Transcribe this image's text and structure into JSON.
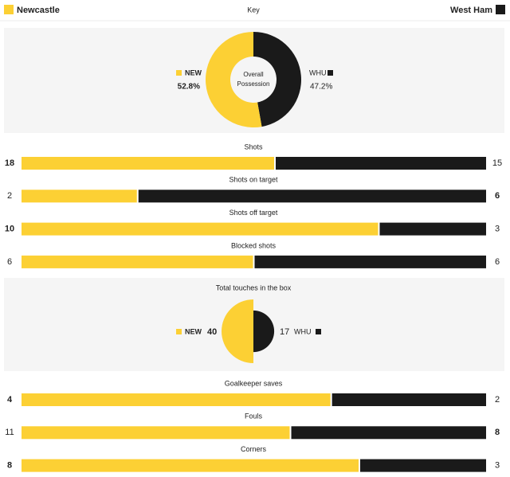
{
  "key": {
    "home": "Newcastle",
    "label": "Key",
    "away": "West Ham",
    "home_color": "#fcd034",
    "away_color": "#1a1a1a"
  },
  "possession": {
    "title_lines": [
      "Overall",
      "Possession"
    ],
    "home": {
      "abbr": "NEW",
      "value": 52.8,
      "label": "52.8%"
    },
    "away": {
      "abbr": "WHU",
      "value": 47.2,
      "label": "47.2%"
    }
  },
  "stats_top": [
    {
      "label": "Shots",
      "home": 18,
      "away": 15,
      "bold": "home"
    },
    {
      "label": "Shots on target",
      "home": 2,
      "away": 6,
      "bold": "away"
    },
    {
      "label": "Shots off target",
      "home": 10,
      "away": 3,
      "bold": "home"
    },
    {
      "label": "Blocked shots",
      "home": 6,
      "away": 6,
      "bold": "none"
    }
  ],
  "touches": {
    "title": "Total touches in the box",
    "home_abbr": "NEW",
    "home": 40,
    "away": 17,
    "away_abbr": "WHU"
  },
  "stats_bottom": [
    {
      "label": "Goalkeeper saves",
      "home": 4,
      "away": 2,
      "bold": "home"
    },
    {
      "label": "Fouls",
      "home": 11,
      "away": 8,
      "bold": "away"
    },
    {
      "label": "Corners",
      "home": 8,
      "away": 3,
      "bold": "home"
    }
  ]
}
